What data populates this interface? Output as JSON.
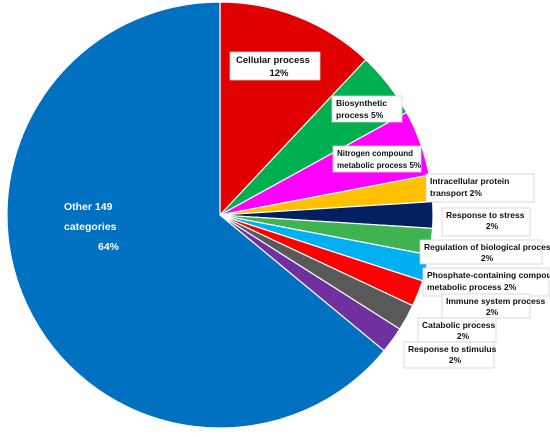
{
  "chart_data": {
    "type": "pie",
    "title": "",
    "slices": [
      {
        "name": "Cellular process",
        "value": 12,
        "value_label": "12%",
        "color": "#e00000"
      },
      {
        "name": "Biosynthetic process",
        "value": 5,
        "value_label": "5%",
        "color": "#00b050"
      },
      {
        "name": "Nitrogen compound metabolic process",
        "value": 5,
        "value_label": "5%",
        "color": "#ff00ff"
      },
      {
        "name": "Intracellular protein transport",
        "value": 2,
        "value_label": "2%",
        "color": "#ffc000"
      },
      {
        "name": "Response to stress",
        "value": 2,
        "value_label": "2%",
        "color": "#002060"
      },
      {
        "name": "Regulation of biological process",
        "value": 2,
        "value_label": "2%",
        "color": "#3fb34f"
      },
      {
        "name": "Phosphate-containing compound metabolic process",
        "value": 2,
        "value_label": "2%",
        "color": "#00b0f0"
      },
      {
        "name": "Immune system process",
        "value": 2,
        "value_label": "2%",
        "color": "#ff0000"
      },
      {
        "name": "Catabolic process",
        "value": 2,
        "value_label": "2%",
        "color": "#595959"
      },
      {
        "name": "Response to stimulus",
        "value": 2,
        "value_label": "2%",
        "color": "#7030a0"
      },
      {
        "name": "Other 149 categories",
        "value": 64,
        "value_label": "64%",
        "color": "#0070c0"
      }
    ]
  }
}
